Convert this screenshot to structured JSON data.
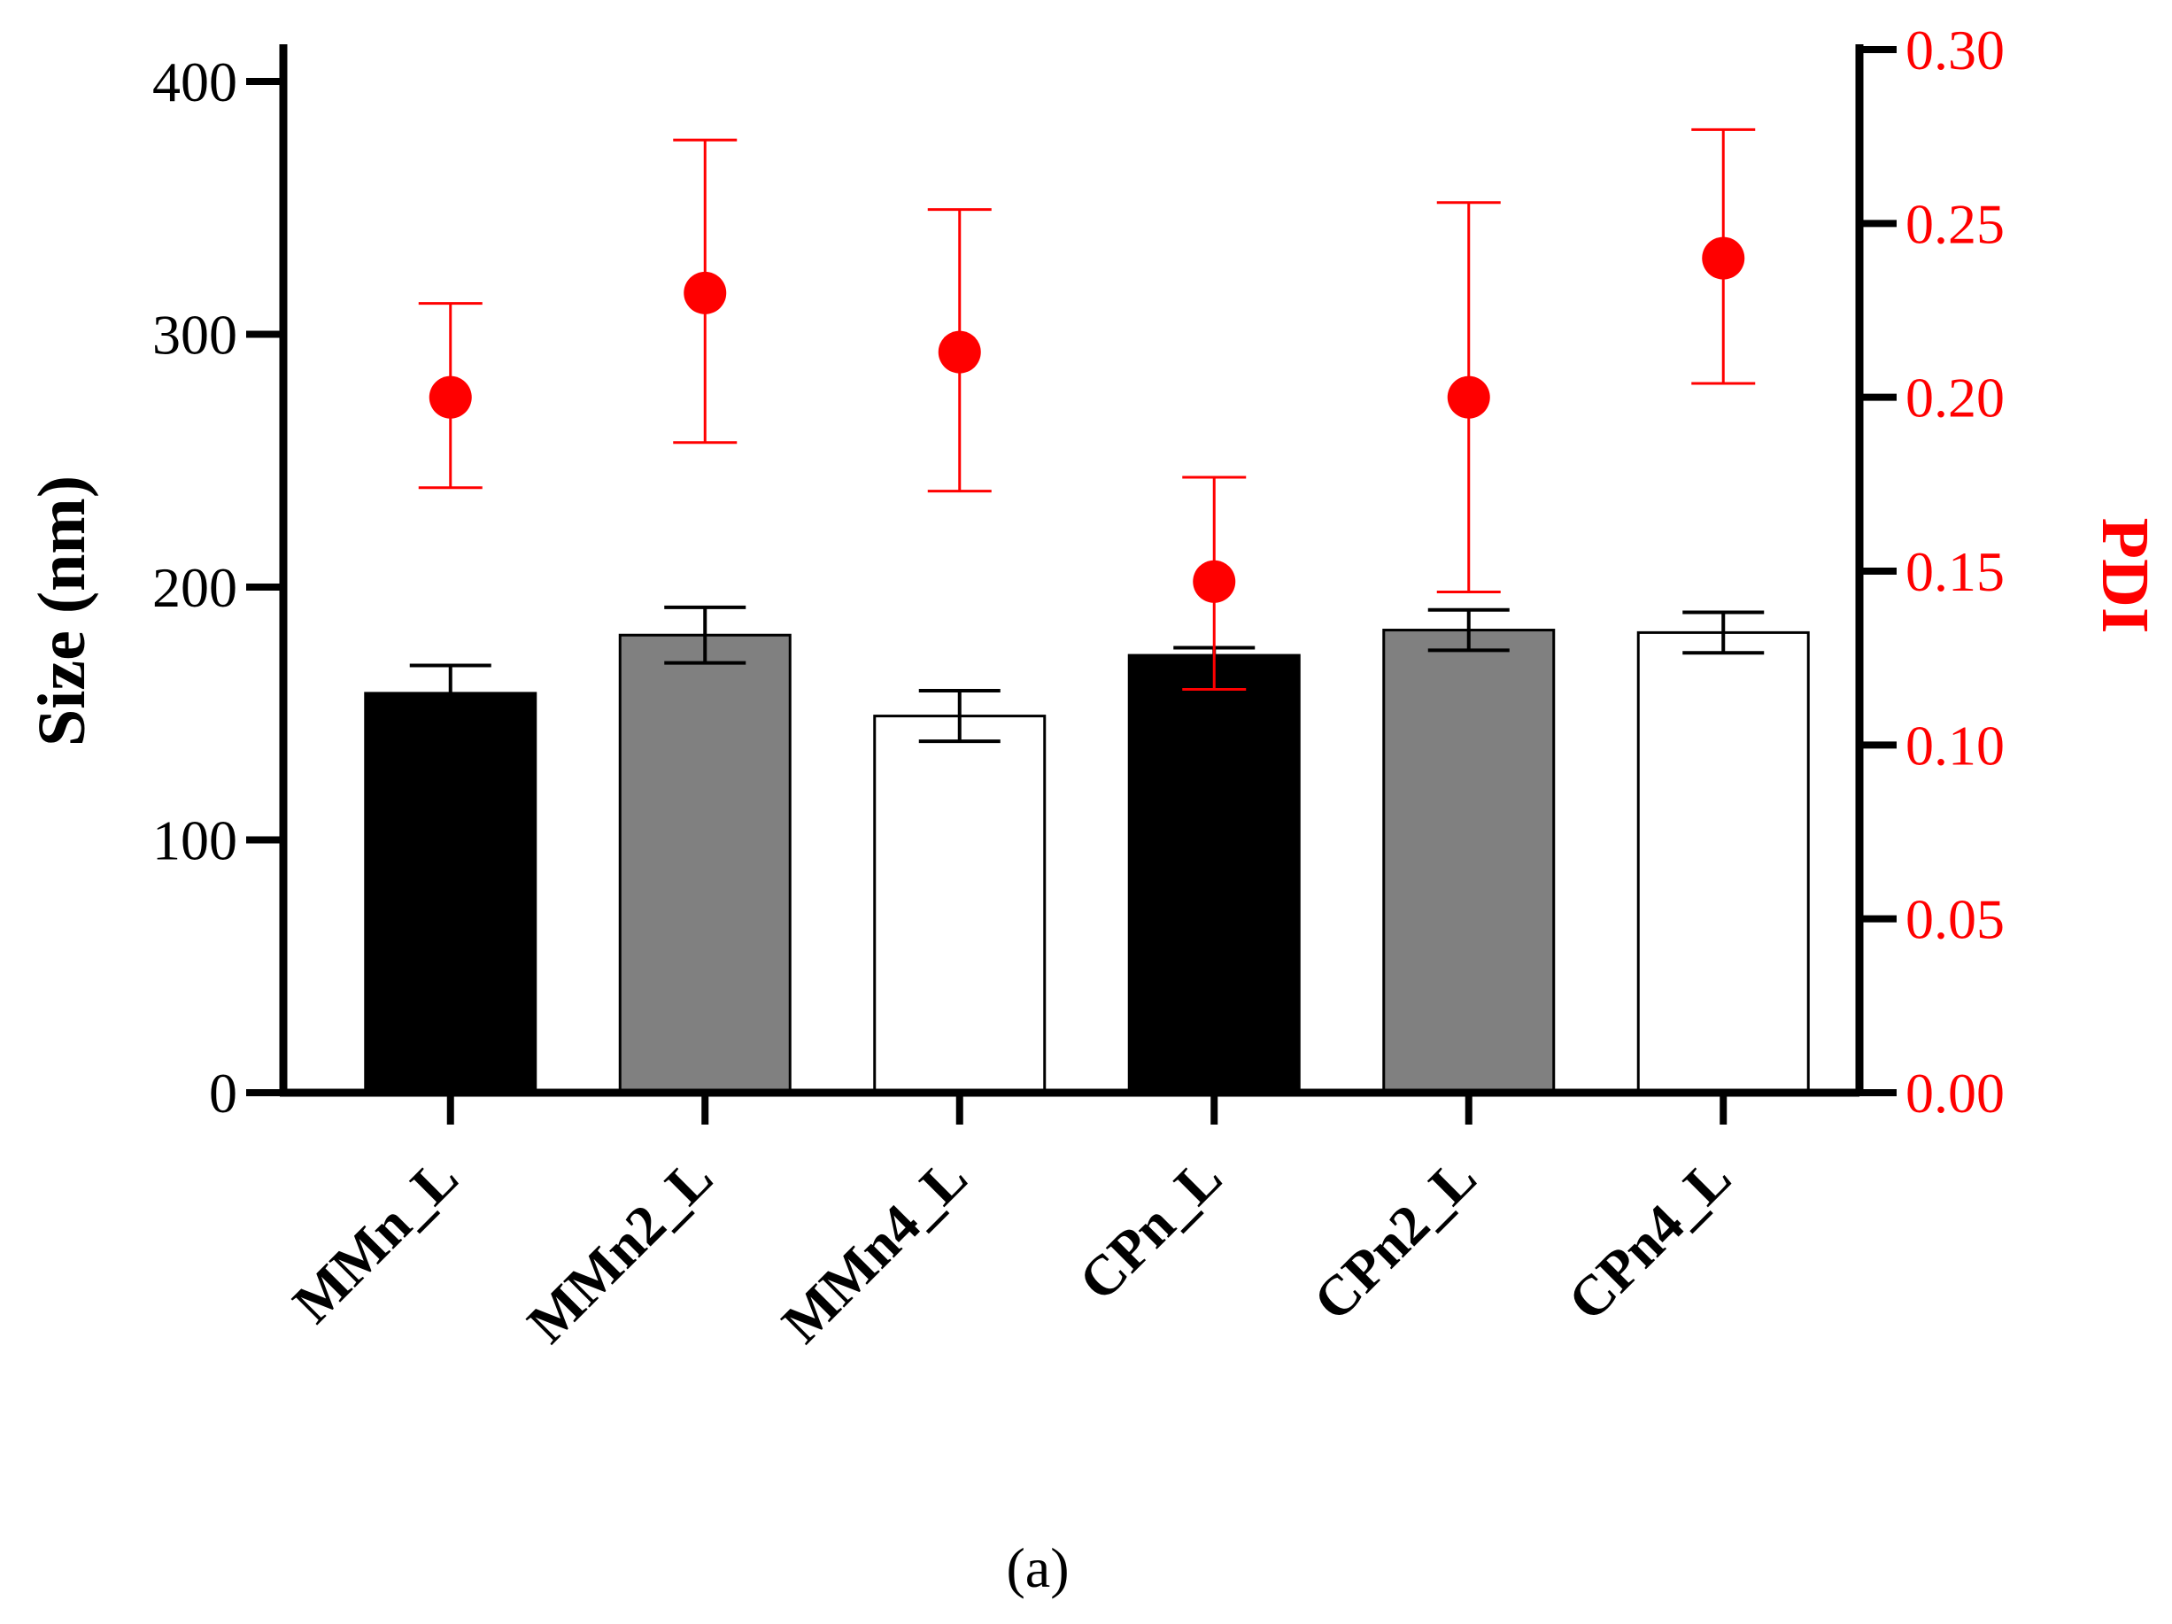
{
  "chart_data": {
    "type": "bar",
    "categories": [
      "MMn_L",
      "MMn2_L",
      "MMn4_L",
      "CPn_L",
      "CPn2_L",
      "CPn4_L"
    ],
    "bar_series": {
      "name": "Size (nm)",
      "values": [
        158,
        181,
        149,
        173,
        183,
        182
      ],
      "error": [
        11,
        11,
        10,
        3,
        8,
        8
      ],
      "fills": [
        "#000000",
        "#808080",
        "#ffffff",
        "#000000",
        "#808080",
        "#ffffff"
      ]
    },
    "point_series": {
      "name": "PDI",
      "values": [
        0.2,
        0.23,
        0.213,
        0.147,
        0.2,
        0.24
      ],
      "error_low": [
        0.026,
        0.043,
        0.04,
        0.031,
        0.056,
        0.036
      ],
      "error_high": [
        0.027,
        0.044,
        0.041,
        0.03,
        0.056,
        0.037
      ],
      "color": "#ff0000"
    },
    "left_axis": {
      "label": "Size (nm)",
      "ylim": [
        0,
        400
      ],
      "ticks": [
        "0",
        "100",
        "200",
        "300",
        "400"
      ],
      "tick_values": [
        0,
        100,
        200,
        300,
        400
      ]
    },
    "right_axis": {
      "label": "PDI",
      "ylim": [
        0,
        0.3
      ],
      "ticks": [
        "0.00",
        "0.05",
        "0.10",
        "0.15",
        "0.20",
        "0.25",
        "0.30"
      ],
      "tick_values": [
        0,
        0.05,
        0.1,
        0.15,
        0.2,
        0.25,
        0.3
      ],
      "color": "#ff0000"
    },
    "caption": "(a)",
    "grid": false
  }
}
